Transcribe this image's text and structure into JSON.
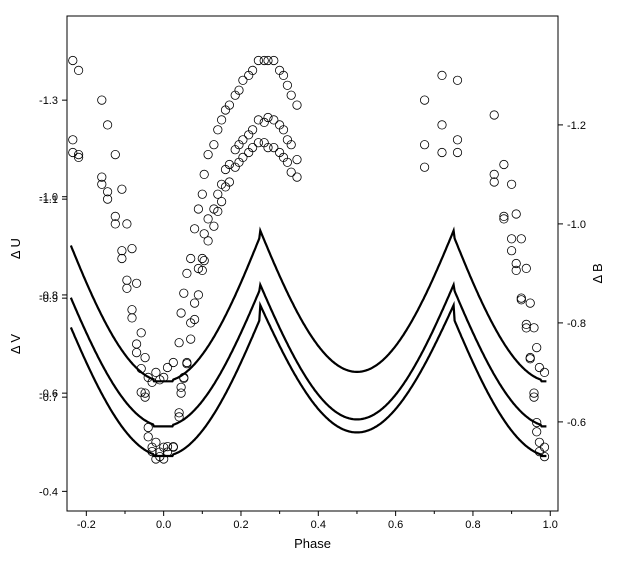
{
  "chart_data": {
    "type": "scatter",
    "xlabel": "Phase",
    "xlim": [
      -0.25,
      1.02
    ],
    "xticks": [
      -0.2,
      0.0,
      0.2,
      0.4,
      0.6,
      0.8,
      1.0
    ],
    "xtick_labels": [
      "-0.2",
      "0.0",
      "0.2",
      "0.4",
      "0.6",
      "0.8",
      "1.0"
    ],
    "y_axes": [
      {
        "id": "U",
        "label": "Δ U",
        "side": "left",
        "range": [
          -0.47,
          -1.47
        ],
        "ticks": [
          -1.3,
          -1.1,
          -0.9,
          -0.7
        ],
        "tick_labels": [
          "-1.3",
          "-1.1",
          "-0.9",
          "-0.7"
        ]
      },
      {
        "id": "V",
        "label": "Δ V",
        "side": "left",
        "range": [
          -0.36,
          -1.368
        ],
        "ticks": [
          -1.0,
          -0.8,
          -0.6,
          -0.4
        ],
        "tick_labels": [
          "-1.0",
          "-0.8",
          "-0.6",
          "-0.4"
        ]
      },
      {
        "id": "B",
        "label": "Δ B",
        "side": "right",
        "range": [
          -0.42,
          -1.42
        ],
        "ticks": [
          -1.2,
          -1.0,
          -0.8,
          -0.6
        ],
        "tick_labels": [
          "-1.2",
          "-1.0",
          "-0.8",
          "-0.6"
        ]
      }
    ],
    "series": [
      {
        "name": "U",
        "axis": "U",
        "model": {
          "max": -1.266,
          "primary_min": -0.641,
          "secondary_min": -0.655
        },
        "observed": [
          [
            -0.235,
            -1.22
          ],
          [
            -0.22,
            -1.19
          ],
          [
            -0.16,
            -1.13
          ],
          [
            -0.145,
            -1.1
          ],
          [
            -0.125,
            -1.05
          ],
          [
            -0.108,
            -0.98
          ],
          [
            -0.095,
            -0.92
          ],
          [
            -0.082,
            -0.86
          ],
          [
            -0.07,
            -0.79
          ],
          [
            -0.058,
            -0.71
          ],
          [
            -0.048,
            -0.7
          ],
          [
            -0.04,
            -0.62
          ],
          [
            -0.03,
            -0.59
          ],
          [
            -0.02,
            -0.575
          ],
          [
            -0.01,
            -0.58
          ],
          [
            0.0,
            -0.575
          ],
          [
            0.01,
            -0.6
          ],
          [
            0.025,
            -0.6
          ],
          [
            0.04,
            -0.66
          ],
          [
            0.045,
            -0.72
          ],
          [
            0.052,
            -0.74
          ],
          [
            0.06,
            -0.77
          ],
          [
            0.07,
            -0.85
          ],
          [
            0.08,
            -0.89
          ],
          [
            0.09,
            -0.96
          ],
          [
            0.1,
            -0.98
          ],
          [
            0.105,
            -1.03
          ],
          [
            0.115,
            -1.06
          ],
          [
            0.13,
            -1.08
          ],
          [
            0.14,
            -1.11
          ],
          [
            0.15,
            -1.13
          ],
          [
            0.16,
            -1.16
          ],
          [
            0.17,
            -1.17
          ],
          [
            0.185,
            -1.2
          ],
          [
            0.195,
            -1.21
          ],
          [
            0.205,
            -1.22
          ],
          [
            0.22,
            -1.23
          ],
          [
            0.23,
            -1.24
          ],
          [
            0.245,
            -1.26
          ],
          [
            0.26,
            -1.255
          ],
          [
            0.27,
            -1.265
          ],
          [
            0.285,
            -1.26
          ],
          [
            0.3,
            -1.25
          ],
          [
            0.31,
            -1.24
          ],
          [
            0.32,
            -1.22
          ],
          [
            0.33,
            -1.21
          ],
          [
            0.345,
            -1.18
          ],
          [
            0.675,
            -1.21
          ],
          [
            0.72,
            -1.25
          ],
          [
            0.76,
            -1.22
          ],
          [
            0.855,
            -1.15
          ],
          [
            0.88,
            -1.06
          ],
          [
            0.9,
            -1.02
          ],
          [
            0.912,
            -0.97
          ],
          [
            0.925,
            -0.9
          ],
          [
            0.938,
            -0.84
          ],
          [
            0.948,
            -0.78
          ],
          [
            0.958,
            -0.7
          ],
          [
            0.965,
            -0.63
          ],
          [
            0.972,
            -0.59
          ],
          [
            0.985,
            -0.58
          ]
        ]
      },
      {
        "name": "B",
        "axis": "B",
        "model": {
          "max": -1.342,
          "primary_min": -0.682,
          "secondary_min": -0.701
        },
        "observed": [
          [
            -0.235,
            -1.33
          ],
          [
            -0.22,
            -1.31
          ],
          [
            -0.16,
            -1.25
          ],
          [
            -0.145,
            -1.2
          ],
          [
            -0.125,
            -1.14
          ],
          [
            -0.108,
            -1.07
          ],
          [
            -0.095,
            -1.0
          ],
          [
            -0.082,
            -0.95
          ],
          [
            -0.07,
            -0.88
          ],
          [
            -0.058,
            -0.78
          ],
          [
            -0.048,
            -0.73
          ],
          [
            -0.04,
            -0.69
          ],
          [
            -0.03,
            -0.68
          ],
          [
            -0.02,
            -0.7
          ],
          [
            -0.01,
            -0.685
          ],
          [
            0.0,
            -0.69
          ],
          [
            0.01,
            -0.71
          ],
          [
            0.025,
            -0.72
          ],
          [
            0.04,
            -0.76
          ],
          [
            0.045,
            -0.82
          ],
          [
            0.052,
            -0.86
          ],
          [
            0.06,
            -0.9
          ],
          [
            0.07,
            -0.93
          ],
          [
            0.08,
            -0.99
          ],
          [
            0.09,
            -1.03
          ],
          [
            0.1,
            -1.06
          ],
          [
            0.105,
            -1.1
          ],
          [
            0.115,
            -1.14
          ],
          [
            0.13,
            -1.16
          ],
          [
            0.14,
            -1.19
          ],
          [
            0.15,
            -1.21
          ],
          [
            0.16,
            -1.23
          ],
          [
            0.17,
            -1.24
          ],
          [
            0.185,
            -1.26
          ],
          [
            0.195,
            -1.27
          ],
          [
            0.205,
            -1.29
          ],
          [
            0.22,
            -1.3
          ],
          [
            0.23,
            -1.31
          ],
          [
            0.245,
            -1.33
          ],
          [
            0.26,
            -1.33
          ],
          [
            0.27,
            -1.33
          ],
          [
            0.285,
            -1.33
          ],
          [
            0.3,
            -1.31
          ],
          [
            0.31,
            -1.3
          ],
          [
            0.32,
            -1.28
          ],
          [
            0.33,
            -1.26
          ],
          [
            0.345,
            -1.24
          ],
          [
            0.675,
            -1.25
          ],
          [
            0.72,
            -1.3
          ],
          [
            0.76,
            -1.29
          ],
          [
            0.855,
            -1.22
          ],
          [
            0.88,
            -1.12
          ],
          [
            0.9,
            -1.08
          ],
          [
            0.912,
            -1.02
          ],
          [
            0.925,
            -0.97
          ],
          [
            0.938,
            -0.91
          ],
          [
            0.948,
            -0.84
          ],
          [
            0.958,
            -0.79
          ],
          [
            0.965,
            -0.75
          ],
          [
            0.972,
            -0.71
          ],
          [
            0.985,
            -0.7
          ]
        ]
      },
      {
        "name": "V",
        "axis": "V",
        "model": {
          "max": -1.102,
          "primary_min": -0.472,
          "secondary_min": -0.52
        },
        "observed": [
          [
            -0.235,
            -1.09
          ],
          [
            -0.22,
            -1.08
          ],
          [
            -0.16,
            -1.04
          ],
          [
            -0.145,
            -1.01
          ],
          [
            -0.125,
            -0.96
          ],
          [
            -0.108,
            -0.89
          ],
          [
            -0.095,
            -0.83
          ],
          [
            -0.082,
            -0.77
          ],
          [
            -0.07,
            -0.7
          ],
          [
            -0.058,
            -0.65
          ],
          [
            -0.048,
            -0.6
          ],
          [
            -0.04,
            -0.53
          ],
          [
            -0.03,
            -0.49
          ],
          [
            -0.02,
            -0.5
          ],
          [
            -0.01,
            -0.48
          ],
          [
            0.0,
            -0.49
          ],
          [
            0.01,
            -0.48
          ],
          [
            0.025,
            -0.49
          ],
          [
            0.04,
            -0.56
          ],
          [
            0.045,
            -0.6
          ],
          [
            0.052,
            -0.63
          ],
          [
            0.06,
            -0.66
          ],
          [
            0.07,
            -0.71
          ],
          [
            0.08,
            -0.75
          ],
          [
            0.09,
            -0.8
          ],
          [
            0.1,
            -0.85
          ],
          [
            0.105,
            -0.87
          ],
          [
            0.115,
            -0.91
          ],
          [
            0.13,
            -0.94
          ],
          [
            0.14,
            -0.97
          ],
          [
            0.15,
            -0.99
          ],
          [
            0.16,
            -1.02
          ],
          [
            0.17,
            -1.03
          ],
          [
            0.185,
            -1.06
          ],
          [
            0.195,
            -1.07
          ],
          [
            0.205,
            -1.08
          ],
          [
            0.22,
            -1.09
          ],
          [
            0.23,
            -1.1
          ],
          [
            0.245,
            -1.11
          ],
          [
            0.26,
            -1.11
          ],
          [
            0.27,
            -1.1
          ],
          [
            0.285,
            -1.1
          ],
          [
            0.3,
            -1.09
          ],
          [
            0.31,
            -1.08
          ],
          [
            0.32,
            -1.07
          ],
          [
            0.33,
            -1.05
          ],
          [
            0.345,
            -1.04
          ],
          [
            0.675,
            -1.06
          ],
          [
            0.72,
            -1.09
          ],
          [
            0.76,
            -1.09
          ],
          [
            0.855,
            -1.03
          ],
          [
            0.88,
            -0.96
          ],
          [
            0.9,
            -0.89
          ],
          [
            0.912,
            -0.85
          ],
          [
            0.925,
            -0.79
          ],
          [
            0.938,
            -0.74
          ],
          [
            0.948,
            -0.67
          ],
          [
            0.958,
            -0.6
          ],
          [
            0.965,
            -0.54
          ],
          [
            0.972,
            -0.5
          ],
          [
            0.985,
            -0.49
          ]
        ]
      }
    ]
  }
}
